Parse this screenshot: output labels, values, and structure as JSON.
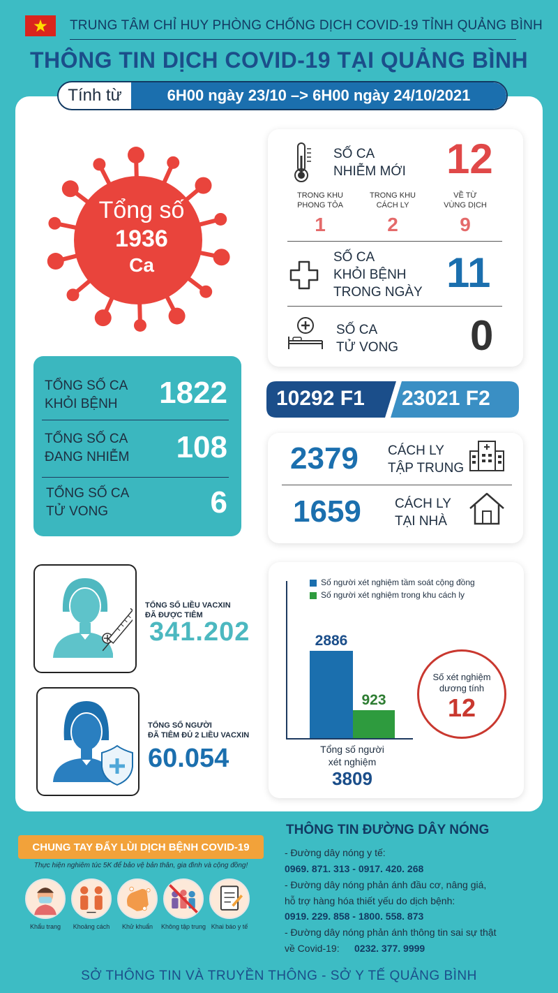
{
  "header": {
    "org": "TRUNG TÂM CHỈ HUY PHÒNG CHỐNG DỊCH COVID-19 TỈNH QUẢNG BÌNH",
    "title": "THÔNG TIN DỊCH COVID-19 TẠI QUẢNG BÌNH",
    "period_label": "Tính từ",
    "period_value": "6H00 ngày 23/10 –> 6H00 ngày 24/10/2021"
  },
  "total": {
    "label": "Tổng số",
    "value": "1936",
    "unit": "Ca"
  },
  "new_cases": {
    "label_1": "SỐ CA",
    "label_2": "NHIỄM MỚI",
    "value": "12",
    "breakdown": [
      {
        "l1": "TRONG KHU",
        "l2": "PHONG TỎA",
        "value": "1"
      },
      {
        "l1": "TRONG KHU",
        "l2": "CÁCH LY",
        "value": "2"
      },
      {
        "l1": "VỀ TỪ",
        "l2": "VÙNG DỊCH",
        "value": "9"
      }
    ]
  },
  "recovered_today": {
    "l1": "SỐ CA",
    "l2": "KHỎI BỆNH",
    "l3": "TRONG NGÀY",
    "value": "11"
  },
  "deaths_today": {
    "l1": "SỐ CA",
    "l2": "TỬ VONG",
    "value": "0"
  },
  "totals": [
    {
      "l1": "TỔNG SỐ CA",
      "l2": "KHỎI BỆNH",
      "value": "1822"
    },
    {
      "l1": "TỔNG SỐ CA",
      "l2": "ĐANG NHIỄM",
      "value": "108"
    },
    {
      "l1": "TỔNG SỐ CA",
      "l2": "TỬ VONG",
      "value": "6"
    }
  ],
  "contacts": {
    "f1": "10292 F1",
    "f2": "23021 F2"
  },
  "isolation": {
    "central": {
      "value": "2379",
      "l1": "CÁCH LY",
      "l2": "TẬP TRUNG"
    },
    "home": {
      "value": "1659",
      "l1": "CÁCH LY",
      "l2": "TẠI NHÀ"
    }
  },
  "vaccine": {
    "doses": {
      "l1": "TỔNG SỐ LIỀU VACXIN",
      "l2": "ĐÃ ĐƯỢC TIÊM",
      "value": "341.202"
    },
    "full": {
      "l1": "TỔNG SỐ NGƯỜI",
      "l2": "ĐÃ TIÊM ĐỦ 2 LIỀU VACXIN",
      "value": "60.054"
    }
  },
  "chart_data": {
    "type": "bar",
    "series": [
      {
        "name": "Số người xét nghiệm tầm soát cộng đồng",
        "values": [
          2886
        ],
        "color": "#1b6fae"
      },
      {
        "name": "Số người xét nghiệm trong khu cách ly",
        "values": [
          923
        ],
        "color": "#2e9b3e"
      }
    ],
    "categories": [
      "Tổng số người xét nghiệm"
    ],
    "category_l1": "Tổng số người",
    "category_l2": "xét nghiệm",
    "total": "3809",
    "positive_l1": "Số xét nghiệm",
    "positive_l2": "dương tính",
    "positive_value": "12"
  },
  "campaign": {
    "banner": "CHUNG TAY ĐẨY LÙI DỊCH BỆNH COVID-19",
    "slogan": "Thực hiện nghiêm túc 5K để bảo vệ bản thân, gia đình và cộng đồng!",
    "items": [
      {
        "label": "Khẩu trang",
        "icon": "mask-icon"
      },
      {
        "label": "Khoảng cách",
        "icon": "distance-icon"
      },
      {
        "label": "Khử khuẩn",
        "icon": "hand-wash-icon"
      },
      {
        "label": "Không tập trung",
        "icon": "no-gathering-icon"
      },
      {
        "label": "Khai báo y tế",
        "icon": "health-declaration-icon"
      }
    ]
  },
  "hotline": {
    "title": "THÔNG TIN ĐƯỜNG DÂY NÓNG",
    "lines": [
      "- Đường dây nóng y tế:",
      "0969. 871. 313   -   0917. 420. 268",
      "- Đường dây nóng phản ánh đầu cơ, nâng giá,",
      "hỗ trợ hàng hóa thiết yếu do dịch bệnh:",
      "0919. 229. 858   -   1800. 558. 873",
      "- Đường dây nóng phản ánh thông tin sai sự thật",
      "về Covid-19:"
    ],
    "last_number": "0232. 377. 9999"
  },
  "footer": "SỞ THÔNG TIN VÀ TRUYỀN THÔNG - SỞ Y TẾ QUẢNG BÌNH",
  "colors": {
    "virus": "#e9443c",
    "navy": "#1b4e8a",
    "blue": "#1b6fae",
    "teal": "#3bb7bf",
    "green": "#2e9b3e",
    "orange": "#f2a23a"
  }
}
